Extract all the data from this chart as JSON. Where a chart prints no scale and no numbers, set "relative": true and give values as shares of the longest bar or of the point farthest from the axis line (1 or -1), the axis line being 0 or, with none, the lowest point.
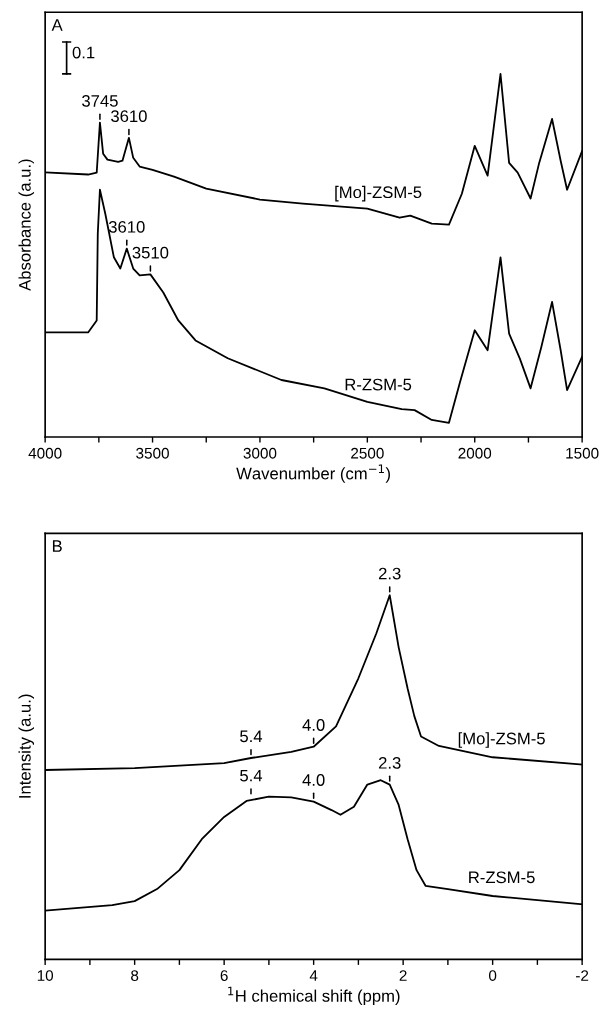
{
  "chart_data": [
    {
      "type": "line",
      "xlabel": "Wavenumber (cm$^{−1}$)",
      "ylabel": "Absorbance (a.u.)",
      "relative": true,
      "tick_labels": "x",
      "xlim": [
        4000,
        1500
      ],
      "xticks": [
        4000,
        {
          "value": 3750,
          "label": null
        },
        3500,
        {
          "value": 3250,
          "label": null
        },
        3000,
        {
          "value": 2750,
          "label": null
        },
        2500,
        {
          "value": 2250,
          "label": null
        },
        2000,
        {
          "value": 1750,
          "label": null
        },
        1500
      ],
      "series": [
        {
          "name": "[Mo]-ZSM-5",
          "color": "#000000",
          "x": [
            4000,
            3800,
            3760,
            3745,
            3730,
            3710,
            3660,
            3640,
            3610,
            3590,
            3560,
            3500,
            3400,
            3250,
            3000,
            2800,
            2500,
            2350,
            2300,
            2200,
            2120,
            2060,
            2000,
            1940,
            1880,
            1840,
            1800,
            1740,
            1700,
            1640,
            1600,
            1570,
            1500
          ],
          "values": [
            0.729,
            0.723,
            0.728,
            0.866,
            0.78,
            0.764,
            0.758,
            0.761,
            0.824,
            0.769,
            0.745,
            0.736,
            0.717,
            0.684,
            0.654,
            0.643,
            0.629,
            0.604,
            0.61,
            0.588,
            0.585,
            0.67,
            0.802,
            0.72,
            1.0,
            0.755,
            0.728,
            0.657,
            0.755,
            0.876,
            0.761,
            0.681,
            0.788
          ]
        },
        {
          "name": "R-ZSM-5",
          "color": "#000000",
          "x": [
            4000,
            3800,
            3760,
            3755,
            3745,
            3720,
            3680,
            3650,
            3620,
            3590,
            3560,
            3510,
            3450,
            3380,
            3300,
            3150,
            2900,
            2700,
            2500,
            2340,
            2280,
            2200,
            2120,
            2070,
            2000,
            1940,
            1880,
            1840,
            1790,
            1740,
            1690,
            1640,
            1600,
            1570,
            1500
          ],
          "values": [
            0.288,
            0.288,
            0.321,
            0.56,
            0.681,
            0.615,
            0.495,
            0.464,
            0.519,
            0.464,
            0.445,
            0.448,
            0.398,
            0.321,
            0.266,
            0.217,
            0.157,
            0.134,
            0.097,
            0.077,
            0.074,
            0.047,
            0.039,
            0.148,
            0.294,
            0.239,
            0.495,
            0.285,
            0.216,
            0.134,
            0.248,
            0.372,
            0.239,
            0.129,
            0.221
          ]
        }
      ],
      "annotations": [
        "A",
        "0.1",
        {
          "text": "3745",
          "x": 3745,
          "y": 0.866
        },
        {
          "text": "3610",
          "x": 3610,
          "y": 0.824
        },
        {
          "text": "3610",
          "x": 3620,
          "y": 0.519
        },
        {
          "text": "3510",
          "x": 3510,
          "y": 0.448
        }
      ]
    },
    {
      "type": "line",
      "xlabel": "$^{1}$H chemical shift (ppm)",
      "ylabel": "Intensity (a.u.)",
      "relative": true,
      "tick_labels": "x",
      "xlim": [
        10,
        -2
      ],
      "xticks": [
        10,
        {
          "value": 9,
          "label": null
        },
        8,
        {
          "value": 7,
          "label": null
        },
        6,
        {
          "value": 5,
          "label": null
        },
        4,
        {
          "value": 3,
          "label": null
        },
        2,
        {
          "value": 1,
          "label": null
        },
        0,
        {
          "value": -1,
          "label": null
        },
        -2
      ],
      "series": [
        {
          "name": "[Mo]-ZSM-5",
          "color": "#000000",
          "x": [
            10,
            8,
            6,
            5.4,
            4.5,
            4.0,
            3.5,
            3.0,
            2.6,
            2.3,
            2.1,
            1.9,
            1.75,
            1.6,
            1.2,
            0,
            -2
          ],
          "values": [
            0.52,
            0.525,
            0.539,
            0.553,
            0.57,
            0.584,
            0.64,
            0.772,
            0.895,
            1.0,
            0.857,
            0.744,
            0.668,
            0.612,
            0.586,
            0.555,
            0.535
          ]
        },
        {
          "name": "R-ZSM-5",
          "color": "#000000",
          "x": [
            10,
            8.5,
            8,
            7.5,
            7,
            6.5,
            6,
            5.5,
            5,
            4.5,
            4.0,
            3.6,
            3.4,
            3.1,
            2.8,
            2.5,
            2.3,
            2.1,
            1.9,
            1.7,
            1.5,
            1.0,
            0,
            -2
          ],
          "values": [
            0.134,
            0.149,
            0.16,
            0.193,
            0.245,
            0.33,
            0.391,
            0.435,
            0.447,
            0.445,
            0.433,
            0.41,
            0.397,
            0.419,
            0.48,
            0.492,
            0.48,
            0.424,
            0.33,
            0.245,
            0.202,
            0.193,
            0.174,
            0.151
          ]
        }
      ],
      "annotations": [
        "B",
        {
          "text": "5.4",
          "x": 5.4,
          "y": 0.445
        },
        {
          "text": "4.0",
          "x": 4.0,
          "y": 0.433
        },
        {
          "text": "2.3",
          "x": 2.3,
          "y": 0.48
        },
        {
          "text": "5.4",
          "x": 5.4,
          "y": 0.553
        },
        {
          "text": "4.0",
          "x": 4.0,
          "y": 0.584
        },
        {
          "text": "2.3",
          "x": 2.3,
          "y": 1.0
        }
      ]
    }
  ]
}
